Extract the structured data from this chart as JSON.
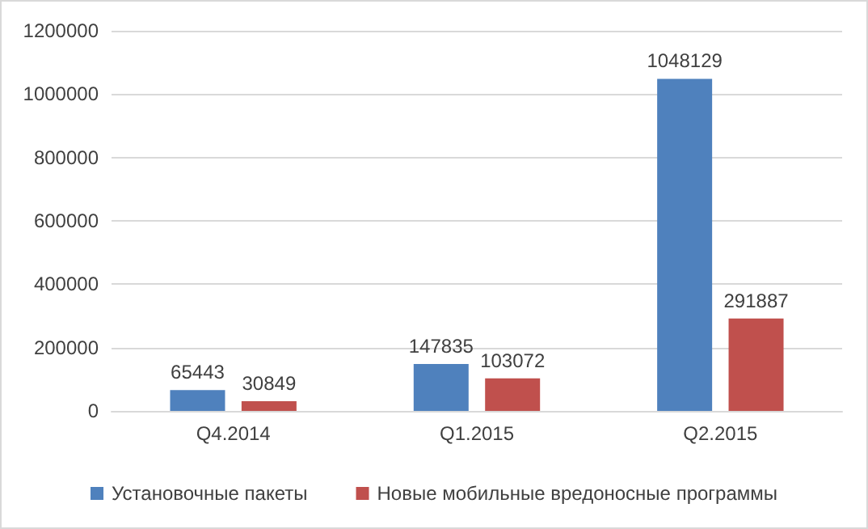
{
  "chart_data": {
    "type": "bar",
    "categories": [
      "Q4.2014",
      "Q1.2015",
      "Q2.2015"
    ],
    "series": [
      {
        "name": "Установочные пакеты",
        "color": "#4f81bd",
        "values": [
          65443,
          147835,
          1048129
        ]
      },
      {
        "name": "Новые мобильные вредоносные программы",
        "color": "#c0504d",
        "values": [
          30849,
          103072,
          291887
        ]
      }
    ],
    "ylim": [
      0,
      1200000
    ],
    "yticks": [
      0,
      200000,
      400000,
      600000,
      800000,
      1000000,
      1200000
    ],
    "grid": "y",
    "legend": "bottom",
    "data_labels": true
  }
}
